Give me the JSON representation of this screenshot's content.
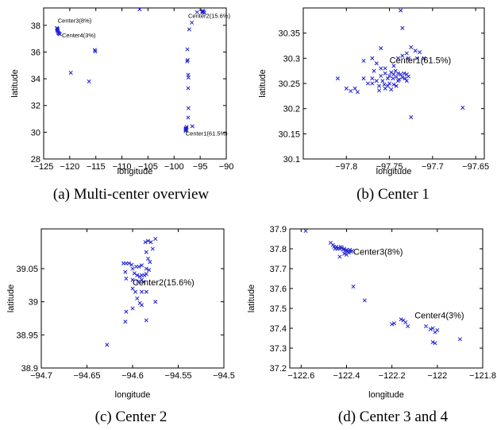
{
  "chart_data": [
    {
      "type": "scatter",
      "caption": "(a)  Multi-center overview",
      "xlabel": "longitude",
      "ylabel": "latitude",
      "xlim": [
        -125,
        -90
      ],
      "ylim": [
        28,
        39.3
      ],
      "xticks": [
        -125,
        -120,
        -115,
        -110,
        -105,
        -100,
        -95,
        -90
      ],
      "yticks": [
        28,
        30,
        32,
        34,
        36,
        38
      ],
      "xtick_labels": [
        "−125",
        "−120",
        "−115",
        "−110",
        "−105",
        "−100",
        "−95",
        "−90"
      ],
      "ytick_labels": [
        "28",
        "30",
        "32",
        "34",
        "36",
        "38"
      ],
      "color": "#1f1fd0",
      "annotations": [
        {
          "text": "Center3(8%)",
          "x": -122.3,
          "y": 38.2
        },
        {
          "text": "Center4(3%)",
          "x": -121.5,
          "y": 37.1
        },
        {
          "text": "Center2(15.6%)",
          "x": -97.3,
          "y": 38.55
        },
        {
          "text": "Center1(61.5%)",
          "x": -97.8,
          "y": 29.75
        }
      ],
      "points": [
        [
          -122.45,
          37.8
        ],
        [
          -122.4,
          37.75
        ],
        [
          -122.35,
          37.7
        ],
        [
          -122.3,
          37.6
        ],
        [
          -122.25,
          37.5
        ],
        [
          -122.15,
          37.42
        ],
        [
          -122.05,
          37.38
        ],
        [
          -121.9,
          37.34
        ],
        [
          -122.4,
          37.62
        ],
        [
          -115.2,
          36.15
        ],
        [
          -115.1,
          36.05
        ],
        [
          -119.8,
          34.45
        ],
        [
          -116.3,
          33.8
        ],
        [
          -106.6,
          39.2
        ],
        [
          -94.6,
          39.05
        ],
        [
          -94.55,
          38.98
        ],
        [
          -94.5,
          39.08
        ],
        [
          -94.35,
          39.02
        ],
        [
          -94.2,
          38.95
        ],
        [
          -95.6,
          38.98
        ],
        [
          -96.6,
          38.2
        ],
        [
          -97.1,
          37.7
        ],
        [
          -97.45,
          36.2
        ],
        [
          -97.4,
          35.4
        ],
        [
          -97.5,
          35.3
        ],
        [
          -97.3,
          34.3
        ],
        [
          -97.25,
          34.1
        ],
        [
          -97.3,
          33.3
        ],
        [
          -97.25,
          31.8
        ],
        [
          -97.3,
          31.1
        ],
        [
          -97.6,
          30.4
        ],
        [
          -97.7,
          30.3
        ],
        [
          -97.75,
          30.25
        ],
        [
          -97.8,
          30.2
        ],
        [
          -97.72,
          30.15
        ],
        [
          -97.65,
          30.28
        ],
        [
          -97.78,
          30.1
        ],
        [
          -96.5,
          30.45
        ]
      ]
    },
    {
      "type": "scatter",
      "caption": "(b)  Center 1",
      "xlabel": "longitude",
      "ylabel": "latitude",
      "xlim": [
        -97.85,
        -97.64
      ],
      "ylim": [
        30.1,
        30.4
      ],
      "xticks": [
        -97.8,
        -97.75,
        -97.7,
        -97.65
      ],
      "yticks": [
        30.1,
        30.15,
        30.2,
        30.25,
        30.3,
        30.35
      ],
      "xtick_labels": [
        "−97.8",
        "−97.75",
        "−97.7",
        "−97.65"
      ],
      "ytick_labels": [
        "30.1",
        "30.15",
        "30.2",
        "30.25",
        "30.3",
        "30.35"
      ],
      "color": "#1f1fd0",
      "annotations": [
        {
          "text": "Center1(61.5%)",
          "x": -97.75,
          "y": 30.29
        }
      ],
      "points": [
        [
          -97.81,
          30.26
        ],
        [
          -97.8,
          30.24
        ],
        [
          -97.795,
          30.235
        ],
        [
          -97.79,
          30.24
        ],
        [
          -97.787,
          30.233
        ],
        [
          -97.78,
          30.295
        ],
        [
          -97.775,
          30.25
        ],
        [
          -97.77,
          30.26
        ],
        [
          -97.768,
          30.275
        ],
        [
          -97.765,
          30.255
        ],
        [
          -97.762,
          30.245
        ],
        [
          -97.76,
          30.265
        ],
        [
          -97.758,
          30.255
        ],
        [
          -97.756,
          30.248
        ],
        [
          -97.755,
          30.27
        ],
        [
          -97.752,
          30.26
        ],
        [
          -97.75,
          30.265
        ],
        [
          -97.748,
          30.272
        ],
        [
          -97.746,
          30.26
        ],
        [
          -97.745,
          30.268
        ],
        [
          -97.743,
          30.275
        ],
        [
          -97.742,
          30.263
        ],
        [
          -97.74,
          30.27
        ],
        [
          -97.739,
          30.258
        ],
        [
          -97.737,
          30.268
        ],
        [
          -97.735,
          30.262
        ],
        [
          -97.733,
          30.27
        ],
        [
          -97.732,
          30.26
        ],
        [
          -97.73,
          30.268
        ],
        [
          -97.728,
          30.264
        ],
        [
          -97.755,
          30.24
        ],
        [
          -97.75,
          30.25
        ],
        [
          -97.745,
          30.248
        ],
        [
          -97.748,
          30.238
        ],
        [
          -97.74,
          30.255
        ],
        [
          -97.76,
          30.28
        ],
        [
          -97.765,
          30.29
        ],
        [
          -97.755,
          30.28
        ],
        [
          -97.745,
          30.285
        ],
        [
          -97.74,
          30.3
        ],
        [
          -97.735,
          30.305
        ],
        [
          -97.73,
          30.31
        ],
        [
          -97.728,
          30.3
        ],
        [
          -97.725,
          30.322
        ],
        [
          -97.72,
          30.315
        ],
        [
          -97.718,
          30.3
        ],
        [
          -97.715,
          30.312
        ],
        [
          -97.71,
          30.3
        ],
        [
          -97.735,
          30.36
        ],
        [
          -97.737,
          30.395
        ],
        [
          -97.76,
          30.32
        ],
        [
          -97.77,
          30.3
        ],
        [
          -97.725,
          30.183
        ],
        [
          -97.665,
          30.202
        ],
        [
          -97.77,
          30.25
        ],
        [
          -97.78,
          30.26
        ],
        [
          -97.752,
          30.245
        ],
        [
          -97.742,
          30.245
        ],
        [
          -97.762,
          30.236
        ],
        [
          -97.73,
          30.255
        ]
      ]
    },
    {
      "type": "scatter",
      "caption": "(c)  Center 2",
      "xlabel": "longitude",
      "ylabel": "latitude",
      "xlim": [
        -94.7,
        -94.5
      ],
      "ylim": [
        38.9,
        39.11
      ],
      "xticks": [
        -94.7,
        -94.65,
        -94.6,
        -94.55,
        -94.5
      ],
      "yticks": [
        38.9,
        38.95,
        39,
        39.05
      ],
      "xtick_labels": [
        "−94.7",
        "−94.65",
        "−94.6",
        "−94.55",
        "−94.5"
      ],
      "ytick_labels": [
        "38.9",
        "38.95",
        "39",
        "39.05"
      ],
      "color": "#1f1fd0",
      "annotations": [
        {
          "text": "Center2(15.6%)",
          "x": -94.6,
          "y": 39.025
        }
      ],
      "points": [
        [
          -94.61,
          39.058
        ],
        [
          -94.607,
          39.058
        ],
        [
          -94.604,
          39.058
        ],
        [
          -94.601,
          39.056
        ],
        [
          -94.6,
          39.05
        ],
        [
          -94.598,
          39.043
        ],
        [
          -94.595,
          39.04
        ],
        [
          -94.592,
          39.038
        ],
        [
          -94.59,
          39.04
        ],
        [
          -94.587,
          39.04
        ],
        [
          -94.585,
          39.042
        ],
        [
          -94.59,
          39.055
        ],
        [
          -94.593,
          39.053
        ],
        [
          -94.596,
          39.053
        ],
        [
          -94.608,
          39.045
        ],
        [
          -94.607,
          39.035
        ],
        [
          -94.6,
          39.033
        ],
        [
          -94.594,
          39.03
        ],
        [
          -94.59,
          39.033
        ],
        [
          -94.588,
          39.03
        ],
        [
          -94.585,
          39.05
        ],
        [
          -94.583,
          39.065
        ],
        [
          -94.585,
          39.075
        ],
        [
          -94.586,
          39.09
        ],
        [
          -94.583,
          39.092
        ],
        [
          -94.58,
          39.09
        ],
        [
          -94.575,
          39.095
        ],
        [
          -94.578,
          39.08
        ],
        [
          -94.581,
          39.06
        ],
        [
          -94.582,
          39.048
        ],
        [
          -94.597,
          39.015
        ],
        [
          -94.595,
          39.005
        ],
        [
          -94.592,
          38.998
        ],
        [
          -94.59,
          38.995
        ],
        [
          -94.585,
          39.015
        ],
        [
          -94.575,
          39.0
        ],
        [
          -94.6,
          38.99
        ],
        [
          -94.607,
          38.985
        ],
        [
          -94.608,
          38.97
        ],
        [
          -94.585,
          38.972
        ],
        [
          -94.628,
          38.935
        ],
        [
          -94.6,
          39.02
        ],
        [
          -94.59,
          39.015
        ]
      ]
    },
    {
      "type": "scatter",
      "caption": "(d)  Center 3 and 4",
      "xlabel": "longitude",
      "ylabel": "latitude",
      "xlim": [
        -122.65,
        -121.8
      ],
      "ylim": [
        37.2,
        37.9
      ],
      "xticks": [
        -122.6,
        -122.4,
        -122.2,
        -122,
        -121.8
      ],
      "yticks": [
        37.2,
        37.3,
        37.4,
        37.5,
        37.6,
        37.7,
        37.8,
        37.9
      ],
      "xtick_labels": [
        "−122.6",
        "−122.4",
        "−122.2",
        "−122",
        "−121.8"
      ],
      "ytick_labels": [
        "37.2",
        "37.3",
        "37.4",
        "37.5",
        "37.6",
        "37.7",
        "37.8",
        "37.9"
      ],
      "color": "#1f1fd0",
      "annotations": [
        {
          "text": "Center3(8%)",
          "x": -122.37,
          "y": 37.77
        },
        {
          "text": "Center4(3%)",
          "x": -122.1,
          "y": 37.45
        }
      ],
      "points": [
        [
          -122.58,
          37.89
        ],
        [
          -122.47,
          37.83
        ],
        [
          -122.46,
          37.82
        ],
        [
          -122.455,
          37.81
        ],
        [
          -122.45,
          37.8
        ],
        [
          -122.445,
          37.81
        ],
        [
          -122.44,
          37.8
        ],
        [
          -122.435,
          37.805
        ],
        [
          -122.43,
          37.8
        ],
        [
          -122.425,
          37.81
        ],
        [
          -122.42,
          37.805
        ],
        [
          -122.415,
          37.795
        ],
        [
          -122.41,
          37.8
        ],
        [
          -122.405,
          37.79
        ],
        [
          -122.4,
          37.795
        ],
        [
          -122.395,
          37.785
        ],
        [
          -122.39,
          37.79
        ],
        [
          -122.385,
          37.795
        ],
        [
          -122.38,
          37.785
        ],
        [
          -122.375,
          37.79
        ],
        [
          -122.41,
          37.775
        ],
        [
          -122.4,
          37.77
        ],
        [
          -122.39,
          37.78
        ],
        [
          -122.43,
          37.76
        ],
        [
          -122.37,
          37.61
        ],
        [
          -122.32,
          37.54
        ],
        [
          -122.2,
          37.42
        ],
        [
          -122.19,
          37.425
        ],
        [
          -122.16,
          37.445
        ],
        [
          -122.15,
          37.44
        ],
        [
          -122.14,
          37.43
        ],
        [
          -122.13,
          37.41
        ],
        [
          -122.05,
          37.41
        ],
        [
          -122.03,
          37.395
        ],
        [
          -122.02,
          37.4
        ],
        [
          -122.01,
          37.38
        ],
        [
          -122.0,
          37.39
        ],
        [
          -122.02,
          37.33
        ],
        [
          -122.01,
          37.325
        ],
        [
          -121.9,
          37.345
        ]
      ]
    }
  ]
}
